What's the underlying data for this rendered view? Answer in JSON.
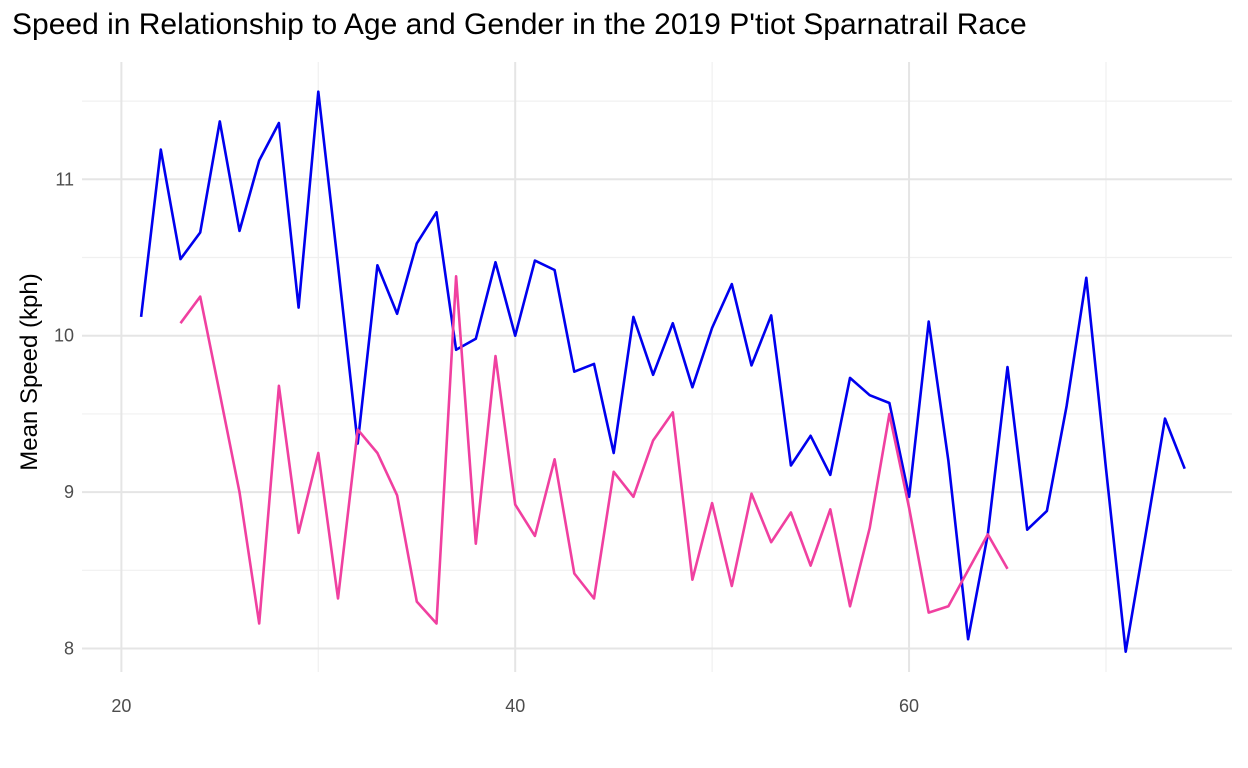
{
  "chart_data": {
    "type": "line",
    "title": "Speed in Relationship to Age and Gender in the 2019 P'tiot Sparnatrail Race",
    "xlabel": "",
    "ylabel": "Mean Speed (kph)",
    "xlim": [
      18,
      76.4
    ],
    "ylim": [
      7.85,
      11.75
    ],
    "x_ticks": [
      20,
      40,
      60
    ],
    "y_ticks": [
      8,
      9,
      10,
      11
    ],
    "grid": true,
    "legend": "none",
    "series": [
      {
        "color": "#0000ee",
        "points": [
          [
            21,
            10.12
          ],
          [
            22,
            11.19
          ],
          [
            23,
            10.49
          ],
          [
            24,
            10.66
          ],
          [
            25,
            11.37
          ],
          [
            26,
            10.67
          ],
          [
            27,
            11.12
          ],
          [
            28,
            11.36
          ],
          [
            29,
            10.18
          ],
          [
            30,
            11.56
          ],
          [
            31,
            10.45
          ],
          [
            32,
            9.31
          ],
          [
            33,
            10.45
          ],
          [
            34,
            10.14
          ],
          [
            35,
            10.59
          ],
          [
            36,
            10.79
          ],
          [
            37,
            9.91
          ],
          [
            38,
            9.98
          ],
          [
            39,
            10.47
          ],
          [
            40,
            10.0
          ],
          [
            41,
            10.48
          ],
          [
            42,
            10.42
          ],
          [
            43,
            9.77
          ],
          [
            44,
            9.82
          ],
          [
            45,
            9.25
          ],
          [
            46,
            10.12
          ],
          [
            47,
            9.75
          ],
          [
            48,
            10.08
          ],
          [
            49,
            9.67
          ],
          [
            50,
            10.05
          ],
          [
            51,
            10.33
          ],
          [
            52,
            9.81
          ],
          [
            53,
            10.13
          ],
          [
            54,
            9.17
          ],
          [
            55,
            9.36
          ],
          [
            56,
            9.11
          ],
          [
            57,
            9.73
          ],
          [
            58,
            9.62
          ],
          [
            59,
            9.57
          ],
          [
            60,
            8.97
          ],
          [
            61,
            10.09
          ],
          [
            62,
            9.2
          ],
          [
            63,
            8.06
          ],
          [
            64,
            8.73
          ],
          [
            65,
            9.8
          ],
          [
            66,
            8.76
          ],
          [
            67,
            8.88
          ],
          [
            68,
            9.55
          ],
          [
            69,
            10.37
          ],
          [
            70,
            9.15
          ],
          [
            71,
            7.98
          ],
          [
            72,
            8.72
          ],
          [
            73,
            9.47
          ],
          [
            74,
            9.15
          ]
        ]
      },
      {
        "color": "#f040a0",
        "points": [
          [
            23,
            10.08
          ],
          [
            24,
            10.25
          ],
          [
            25,
            9.63
          ],
          [
            26,
            9.0
          ],
          [
            27,
            8.16
          ],
          [
            28,
            9.68
          ],
          [
            29,
            8.74
          ],
          [
            30,
            9.25
          ],
          [
            31,
            8.32
          ],
          [
            32,
            9.4
          ],
          [
            33,
            9.25
          ],
          [
            34,
            8.98
          ],
          [
            35,
            8.3
          ],
          [
            36,
            8.16
          ],
          [
            37,
            10.38
          ],
          [
            38,
            8.67
          ],
          [
            39,
            9.87
          ],
          [
            40,
            8.92
          ],
          [
            41,
            8.72
          ],
          [
            42,
            9.21
          ],
          [
            43,
            8.48
          ],
          [
            44,
            8.32
          ],
          [
            45,
            9.13
          ],
          [
            46,
            8.97
          ],
          [
            47,
            9.33
          ],
          [
            48,
            9.51
          ],
          [
            49,
            8.44
          ],
          [
            50,
            8.93
          ],
          [
            51,
            8.4
          ],
          [
            52,
            8.99
          ],
          [
            53,
            8.68
          ],
          [
            54,
            8.87
          ],
          [
            55,
            8.53
          ],
          [
            56,
            8.89
          ],
          [
            57,
            8.27
          ],
          [
            58,
            8.77
          ],
          [
            59,
            9.5
          ],
          [
            60,
            8.9
          ],
          [
            61,
            8.23
          ],
          [
            62,
            8.27
          ],
          [
            63,
            8.5
          ],
          [
            64,
            8.73
          ],
          [
            65,
            8.51
          ]
        ]
      }
    ]
  }
}
